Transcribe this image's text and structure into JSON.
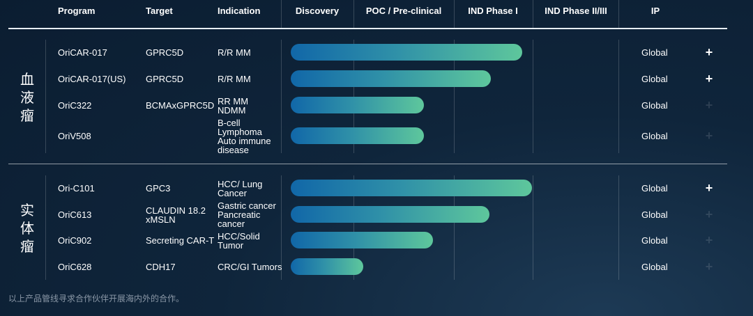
{
  "headers": {
    "program": "Program",
    "target": "Target",
    "indication": "Indication",
    "discovery": "Discovery",
    "poc": "POC / Pre-clinical",
    "ind1": "IND Phase I",
    "ind23": "IND Phase II/III",
    "ip": "IP"
  },
  "groups": [
    {
      "label": [
        "血",
        "液",
        "瘤"
      ]
    },
    {
      "label": [
        "实",
        "体",
        "瘤"
      ]
    }
  ],
  "chart_data": {
    "type": "bar",
    "orientation": "horizontal",
    "stages": [
      "Discovery",
      "POC / Pre-clinical",
      "IND Phase I",
      "IND Phase II/III"
    ],
    "rows": [
      {
        "program": "OriCAR-017",
        "target": "GPRC5D",
        "indication": [
          "R/R MM"
        ],
        "ip": "Global",
        "progress_stages": 2.87,
        "expandable": true
      },
      {
        "program": "OriCAR-017(US)",
        "target": "GPRC5D",
        "indication": [
          "R/R MM"
        ],
        "ip": "Global",
        "progress_stages": 2.47,
        "expandable": true
      },
      {
        "program": "OriC322",
        "target": "BCMAxGPRC5D",
        "indication": [
          "RR MM",
          "NDMM"
        ],
        "ip": "Global",
        "progress_stages": 1.7,
        "expandable": false
      },
      {
        "program": "OriV508",
        "target": "",
        "indication": [
          "B-cell",
          "Lymphoma",
          "Auto immune",
          "disease"
        ],
        "ip": "Global",
        "progress_stages": 1.7,
        "expandable": false
      },
      {
        "program": "Ori-C101",
        "target": "GPC3",
        "indication": [
          "HCC/ Lung",
          "Cancer"
        ],
        "ip": "Global",
        "progress_stages": 2.99,
        "expandable": true
      },
      {
        "program": "OriC613",
        "target": "CLAUDIN 18.2\nxMSLN",
        "indication": [
          "Gastric cancer",
          "Pancreatic",
          "cancer"
        ],
        "ip": "Global",
        "progress_stages": 2.45,
        "expandable": false
      },
      {
        "program": "OriC902",
        "target": "Secreting CAR-T",
        "indication": [
          "HCC/Solid",
          "Tumor"
        ],
        "ip": "Global",
        "progress_stages": 1.79,
        "expandable": false
      },
      {
        "program": "OriC628",
        "target": "CDH17",
        "indication": [
          "CRC/GI Tumors"
        ],
        "ip": "Global",
        "progress_stages": 1.1,
        "expandable": false
      }
    ]
  },
  "icons": {
    "expand": "plus-icon"
  },
  "colors": {
    "bar_start": "#1167a8",
    "bar_end": "#5ec79c",
    "background": "#0f253b"
  },
  "plus_symbol": "+",
  "footnote": "以上产品管线寻求合作伙伴开展海内外的合作。"
}
